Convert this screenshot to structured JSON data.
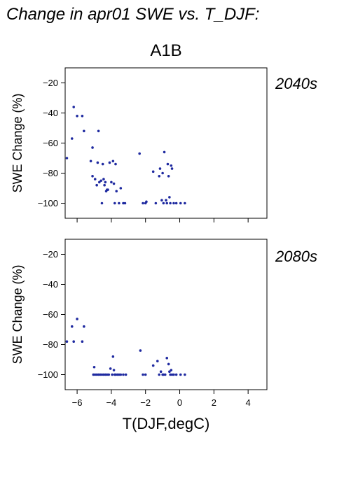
{
  "title": "Change in apr01 SWE vs. T_DJF:",
  "scenario_label": "A1B",
  "colors": {
    "points": "#1f2aa0",
    "period_label": "#1f2aa0",
    "axes": "#000000"
  },
  "chart_data": [
    {
      "type": "scatter",
      "period_label": "2040s",
      "ylabel": "SWE Change (%)",
      "xlim": [
        -6.7,
        5.1
      ],
      "ylim": [
        -110,
        -10
      ],
      "yticks": [
        -20,
        -40,
        -60,
        -80,
        -100
      ],
      "xticks": [
        -6,
        -4,
        -2,
        0,
        2,
        4
      ],
      "x": [
        -6.6,
        -6.3,
        -6.2,
        -6.0,
        -5.7,
        -5.6,
        -5.2,
        -5.1,
        -5.1,
        -4.95,
        -4.85,
        -4.8,
        -4.75,
        -4.7,
        -4.6,
        -4.55,
        -4.5,
        -4.45,
        -4.4,
        -4.35,
        -4.3,
        -4.25,
        -4.2,
        -4.1,
        -4.0,
        -3.9,
        -3.85,
        -3.8,
        -3.75,
        -3.7,
        -3.55,
        -3.45,
        -3.3,
        -3.2,
        -2.35,
        -2.15,
        -2.0,
        -1.95,
        -1.55,
        -1.4,
        -1.2,
        -1.15,
        -1.05,
        -1.0,
        -0.95,
        -0.9,
        -0.8,
        -0.75,
        -0.7,
        -0.65,
        -0.6,
        -0.55,
        -0.5,
        -0.45,
        -0.35,
        -0.2,
        0.05,
        0.3
      ],
      "y": [
        -70,
        -57,
        -36,
        -42,
        -42,
        -52,
        -72,
        -63,
        -82,
        -84,
        -88,
        -73,
        -52,
        -86,
        -85,
        -100,
        -74,
        -84,
        -88,
        -86,
        -92,
        -91,
        -91,
        -73,
        -86,
        -72,
        -87,
        -100,
        -74,
        -92,
        -100,
        -90,
        -100,
        -100,
        -67,
        -100,
        -100,
        -99,
        -79,
        -100,
        -82,
        -77,
        -98,
        -80,
        -100,
        -66,
        -98,
        -100,
        -74,
        -82,
        -96,
        -100,
        -75,
        -77,
        -100,
        -100,
        -100,
        -100
      ]
    },
    {
      "type": "scatter",
      "period_label": "2080s",
      "ylabel": "SWE Change (%)",
      "xlabel": "T(DJF,degC)",
      "xlim": [
        -6.7,
        5.1
      ],
      "ylim": [
        -110,
        -10
      ],
      "yticks": [
        -20,
        -40,
        -60,
        -80,
        -100
      ],
      "xticks": [
        -6,
        -4,
        -2,
        0,
        2,
        4
      ],
      "xticklabels": [
        "−6",
        "−4",
        "−2",
        "0",
        "2",
        "4"
      ],
      "x": [
        -6.6,
        -6.3,
        -6.2,
        -6.0,
        -5.7,
        -5.6,
        -5.05,
        -5.0,
        -4.95,
        -4.85,
        -4.75,
        -4.65,
        -4.55,
        -4.45,
        -4.35,
        -4.25,
        -4.15,
        -4.05,
        -3.95,
        -3.9,
        -3.85,
        -3.8,
        -3.75,
        -3.65,
        -3.55,
        -3.45,
        -3.3,
        -3.15,
        -2.3,
        -2.15,
        -2.0,
        -1.55,
        -1.3,
        -1.2,
        -1.1,
        -1.0,
        -0.95,
        -0.85,
        -0.75,
        -0.65,
        -0.6,
        -0.55,
        -0.5,
        -0.45,
        -0.35,
        -0.2,
        0.05,
        0.3
      ],
      "y": [
        -78,
        -68,
        -78,
        -63,
        -78,
        -68,
        -100,
        -95,
        -100,
        -100,
        -100,
        -100,
        -100,
        -100,
        -100,
        -100,
        -100,
        -96,
        -100,
        -88,
        -97,
        -100,
        -100,
        -100,
        -100,
        -100,
        -100,
        -100,
        -84,
        -100,
        -100,
        -94,
        -91,
        -100,
        -98,
        -100,
        -100,
        -100,
        -89,
        -93,
        -98,
        -100,
        -97,
        -100,
        -100,
        -100,
        -100,
        -100
      ]
    }
  ]
}
